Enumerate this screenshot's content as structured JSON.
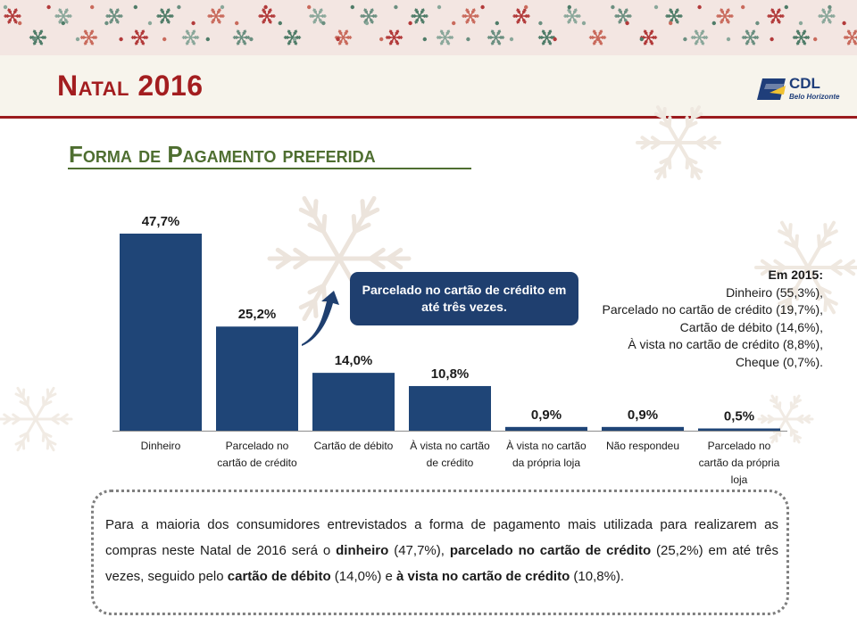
{
  "header": {
    "title": "Natal 2016",
    "logo_text": "CDL",
    "logo_subtext": "Belo Horizonte"
  },
  "subtitle": "Forma de Pagamento preferida",
  "colors": {
    "bar": "#1f4577",
    "title_red": "#a31d1f",
    "subtitle_green": "#4e6e30",
    "callout_bg": "#1f3f6f"
  },
  "chart_data": {
    "type": "bar",
    "categories": [
      "Dinheiro",
      "Parcelado no cartão de crédito",
      "Cartão de débito",
      "À vista no cartão de crédito",
      "À vista no cartão da própria loja",
      "Não respondeu",
      "Parcelado no cartão da própria loja"
    ],
    "category_lines": [
      [
        "Dinheiro"
      ],
      [
        "Parcelado no",
        "cartão de crédito"
      ],
      [
        "Cartão de débito"
      ],
      [
        "À vista no cartão",
        "de crédito"
      ],
      [
        "À vista no cartão",
        "da própria loja"
      ],
      [
        "Não respondeu"
      ],
      [
        "Parcelado no",
        "cartão da própria",
        "loja"
      ]
    ],
    "values": [
      47.7,
      25.2,
      14.0,
      10.8,
      0.9,
      0.9,
      0.5
    ],
    "data_labels": [
      "47,7%",
      "25,2%",
      "14,0%",
      "10,8%",
      "0,9%",
      "0,9%",
      "0,5%"
    ],
    "ylim": [
      0,
      50
    ],
    "grid": false,
    "legend": "none"
  },
  "callout": "Parcelado no cartão de crédito em até três vezes.",
  "note_2015": {
    "title": "Em 2015:",
    "lines": [
      "Dinheiro (55,3%),",
      "Parcelado no cartão de crédito (19,7%),",
      "Cartão de débito (14,6%),",
      "À vista no cartão de crédito (8,8%),",
      "Cheque (0,7%)."
    ]
  },
  "summary": {
    "p1": "Para a maioria dos consumidores entrevistados a forma de pagamento mais utilizada para realizarem as compras neste Natal de 2016 será o ",
    "b1": "dinheiro",
    "p2": " (47,7%), ",
    "b2": "parcelado no cartão de crédito",
    "p3": " (25,2%) em até três vezes, seguido pelo ",
    "b3": "cartão de débito",
    "p4": " (14,0%) e ",
    "b4": "à vista no cartão de crédito",
    "p5": " (10,8%)."
  }
}
